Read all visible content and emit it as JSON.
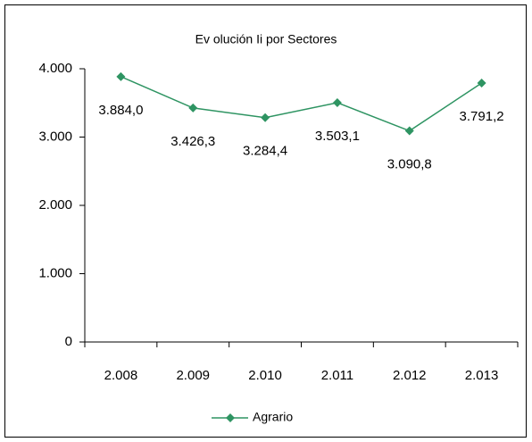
{
  "chart_data": {
    "type": "line",
    "title": "Ev olución Ii por Sectores",
    "categories": [
      "2.008",
      "2.009",
      "2.010",
      "2.011",
      "2.012",
      "2.013"
    ],
    "series": [
      {
        "name": "Agrario",
        "color": "#2e9462",
        "values": [
          3884.0,
          3426.3,
          3284.4,
          3503.1,
          3090.8,
          3791.2
        ],
        "value_labels": [
          "3.884,0",
          "3.426,3",
          "3.284,4",
          "3.503,1",
          "3.090,8",
          "3.791,2"
        ]
      }
    ],
    "ylim": [
      0,
      4000
    ],
    "yticks": [
      0,
      {
        "value": 1000,
        "label": "1.000"
      },
      {
        "value": 2000,
        "label": "2.000"
      },
      {
        "value": 3000,
        "label": "3.000"
      },
      {
        "value": 4000,
        "label": "4.000"
      }
    ],
    "legend": "bottom"
  }
}
